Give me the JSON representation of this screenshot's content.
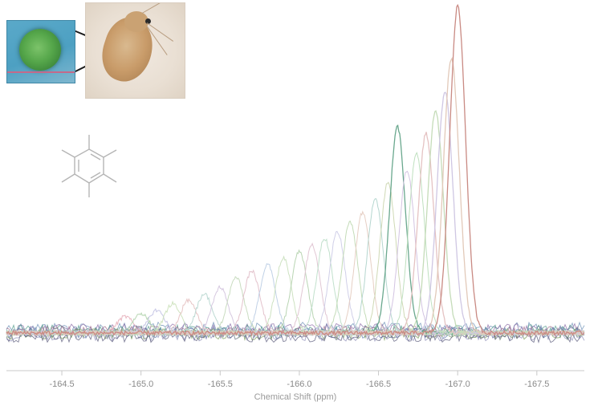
{
  "chart_data": {
    "type": "line",
    "title": "",
    "xlabel": "Chemical Shift (ppm)",
    "ylabel": "",
    "x_ticks": [
      -164.5,
      -165.0,
      -165.5,
      -166.0,
      -166.5,
      -167.0,
      -167.5
    ],
    "x_tick_labels": [
      "-164.5",
      "-165.0",
      "-165.5",
      "-166.0",
      "-166.5",
      "-167.0",
      "-167.5"
    ],
    "xlim": [
      -164.15,
      -167.8
    ],
    "x_direction": "reversed",
    "ylim": [
      0,
      1
    ],
    "grid": false,
    "legend": "none",
    "series_shape": "gaussian peak per spectrum",
    "peak_width_ppm": 0.11,
    "series": [
      {
        "center": -164.9,
        "height": 0.05,
        "color": "#e9b7c1"
      },
      {
        "center": -165.0,
        "height": 0.06,
        "color": "#b9d7b5"
      },
      {
        "center": -165.1,
        "height": 0.07,
        "color": "#c7c7e6"
      },
      {
        "center": -165.2,
        "height": 0.09,
        "color": "#cfe3bf"
      },
      {
        "center": -165.3,
        "height": 0.1,
        "color": "#e7c6c6"
      },
      {
        "center": -165.4,
        "height": 0.12,
        "color": "#bcd9d3"
      },
      {
        "center": -165.5,
        "height": 0.14,
        "color": "#d6c8e0"
      },
      {
        "center": -165.6,
        "height": 0.17,
        "color": "#c9dcc0"
      },
      {
        "center": -165.7,
        "height": 0.19,
        "color": "#e3c2cc"
      },
      {
        "center": -165.8,
        "height": 0.21,
        "color": "#c0d1e6"
      },
      {
        "center": -165.9,
        "height": 0.23,
        "color": "#cde2c1"
      },
      {
        "center": -166.0,
        "height": 0.25,
        "color": "#b9d5b3"
      },
      {
        "center": -166.08,
        "height": 0.27,
        "color": "#e1c7d4"
      },
      {
        "center": -166.16,
        "height": 0.29,
        "color": "#c1e0cc"
      },
      {
        "center": -166.24,
        "height": 0.31,
        "color": "#d0cfe8"
      },
      {
        "center": -166.32,
        "height": 0.34,
        "color": "#c4dcb8"
      },
      {
        "center": -166.4,
        "height": 0.37,
        "color": "#e6cfc4"
      },
      {
        "center": -166.48,
        "height": 0.41,
        "color": "#b5d6cf"
      },
      {
        "center": -166.56,
        "height": 0.46,
        "color": "#cfd9b5"
      },
      {
        "center": -166.62,
        "height": 0.63,
        "color": "#6aa88e"
      },
      {
        "center": -166.68,
        "height": 0.5,
        "color": "#d3c4e2"
      },
      {
        "center": -166.74,
        "height": 0.55,
        "color": "#bfe0bf"
      },
      {
        "center": -166.8,
        "height": 0.61,
        "color": "#e5c3c3"
      },
      {
        "center": -166.86,
        "height": 0.68,
        "color": "#c5dcb9"
      },
      {
        "center": -166.92,
        "height": 0.74,
        "color": "#cfc7e3"
      },
      {
        "center": -166.96,
        "height": 0.84,
        "color": "#e2c9b9"
      },
      {
        "center": -167.0,
        "height": 1.0,
        "color": "#c98a83"
      }
    ],
    "baseline_noise_colors": [
      "#6b8fb5",
      "#8a6aa5",
      "#4f9a8a",
      "#a06a8a",
      "#5a78a8",
      "#7a9a5a",
      "#8f8fb8",
      "#5a5a7a"
    ]
  }
}
